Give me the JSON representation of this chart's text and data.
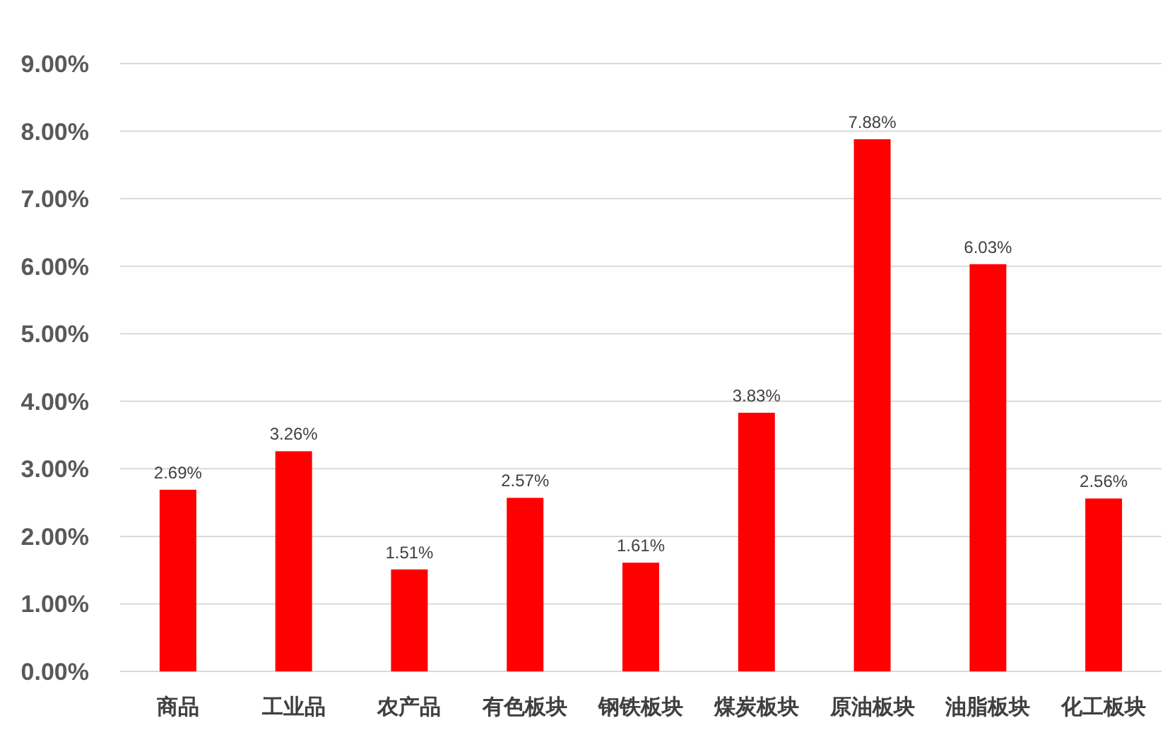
{
  "chart_data": {
    "type": "bar",
    "categories": [
      "商品",
      "工业品",
      "农产品",
      "有色板块",
      "钢铁板块",
      "煤炭板块",
      "原油板块",
      "油脂板块",
      "化工板块"
    ],
    "values": [
      2.69,
      3.26,
      1.51,
      2.57,
      1.61,
      3.83,
      7.88,
      6.03,
      2.56
    ],
    "value_labels": [
      "2.69%",
      "3.26%",
      "1.51%",
      "2.57%",
      "1.61%",
      "3.83%",
      "7.88%",
      "6.03%",
      "2.56%"
    ],
    "color": "#ff0000",
    "ylim": [
      0,
      9
    ],
    "yticks": [
      {
        "value": 0,
        "label": "0.00%"
      },
      {
        "value": 1,
        "label": "1.00%"
      },
      {
        "value": 2,
        "label": "2.00%"
      },
      {
        "value": 3,
        "label": "3.00%"
      },
      {
        "value": 4,
        "label": "4.00%"
      },
      {
        "value": 5,
        "label": "5.00%"
      },
      {
        "value": 6,
        "label": "6.00%"
      },
      {
        "value": 7,
        "label": "7.00%"
      },
      {
        "value": 8,
        "label": "8.00%"
      },
      {
        "value": 9,
        "label": "9.00%"
      }
    ],
    "grid": "y"
  }
}
